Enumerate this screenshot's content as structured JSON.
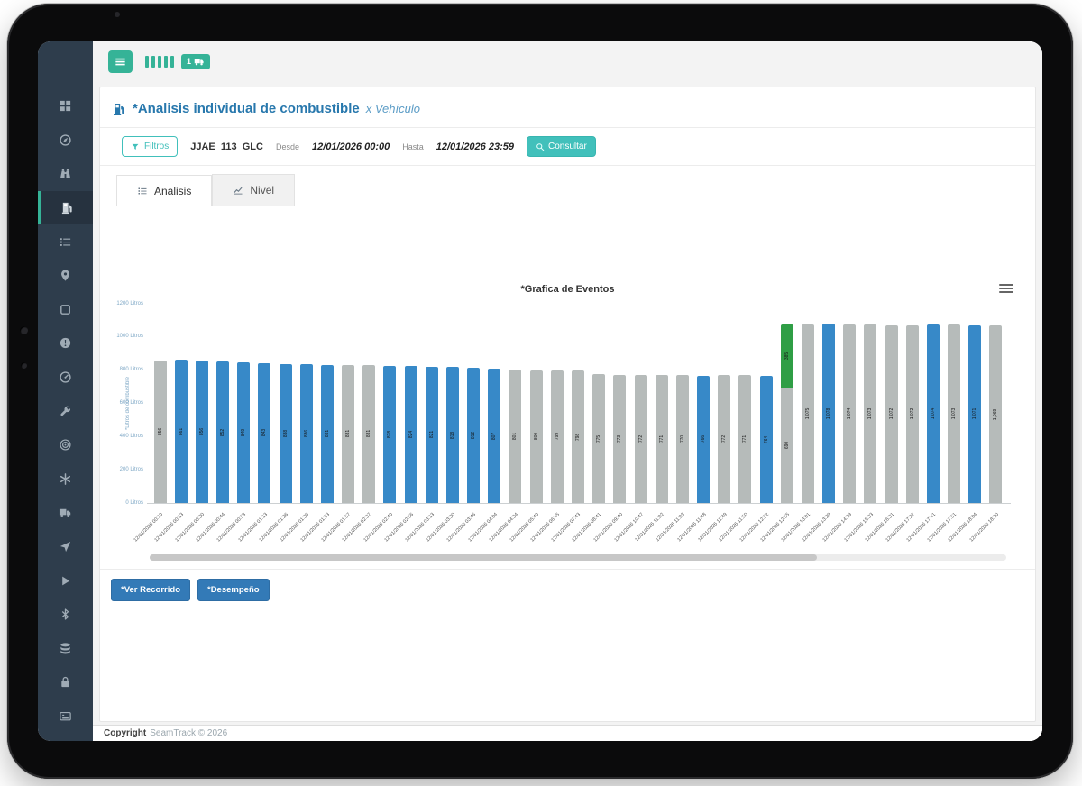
{
  "topbar": {
    "badge_count": "1"
  },
  "header": {
    "title": "*Analisis individual de combustible",
    "subtitle": "x Vehículo"
  },
  "filterbar": {
    "filtros": "Filtros",
    "vehicle": "JJAE_113_GLC",
    "desde_label": "Desde",
    "desde_value": "12/01/2026 00:00",
    "hasta_label": "Hasta",
    "hasta_value": "12/01/2026 23:59",
    "consultar": "Consultar"
  },
  "tabs": [
    {
      "label": "Analisis",
      "active": true
    },
    {
      "label": "Nivel",
      "active": false
    }
  ],
  "sidebar": {
    "active": "fuel-pump",
    "items": [
      {
        "name": "grid"
      },
      {
        "name": "compass"
      },
      {
        "name": "binoculars"
      },
      {
        "name": "fuel-pump"
      },
      {
        "name": "list"
      },
      {
        "name": "map-pin"
      },
      {
        "name": "square"
      },
      {
        "name": "alert"
      },
      {
        "name": "gauge"
      },
      {
        "name": "wrench"
      },
      {
        "name": "target"
      },
      {
        "name": "asterisk"
      },
      {
        "name": "truck"
      },
      {
        "name": "nav-arrow"
      },
      {
        "name": "play"
      },
      {
        "name": "bluetooth"
      },
      {
        "name": "database"
      },
      {
        "name": "lock"
      },
      {
        "name": "card"
      }
    ]
  },
  "chart_data": {
    "type": "bar",
    "title": "*Grafica de Eventos",
    "xlabel": "",
    "ylabel": "*Litros de combustible",
    "ylim": [
      0,
      1200
    ],
    "yticks": [
      0,
      200,
      400,
      600,
      800,
      1000,
      1200
    ],
    "ytick_unit": "Litros",
    "grid": false,
    "legend": "none",
    "bar_colors": {
      "normal": "#3789c8",
      "idle": "#b6bbba",
      "load": "#2f9e45"
    },
    "bars": [
      {
        "time": "12/01/2026 00:10",
        "value": 856,
        "color": "idle",
        "load": 0
      },
      {
        "time": "12/01/2026 00:13",
        "value": 861,
        "color": "normal",
        "load": 0
      },
      {
        "time": "12/01/2026 00:30",
        "value": 856,
        "color": "normal",
        "load": 0
      },
      {
        "time": "12/01/2026 00:44",
        "value": 852,
        "color": "normal",
        "load": 0
      },
      {
        "time": "12/01/2026 00:58",
        "value": 849,
        "color": "normal",
        "load": 0
      },
      {
        "time": "12/01/2026 01:13",
        "value": 843,
        "color": "normal",
        "load": 0
      },
      {
        "time": "12/01/2026 01:26",
        "value": 838,
        "color": "normal",
        "load": 0
      },
      {
        "time": "12/01/2026 01:39",
        "value": 836,
        "color": "normal",
        "load": 0
      },
      {
        "time": "12/01/2026 01:53",
        "value": 831,
        "color": "normal",
        "load": 0
      },
      {
        "time": "12/01/2026 01:57",
        "value": 831,
        "color": "idle",
        "load": 0
      },
      {
        "time": "12/01/2026 02:37",
        "value": 831,
        "color": "idle",
        "load": 0
      },
      {
        "time": "12/01/2026 02:40",
        "value": 828,
        "color": "normal",
        "load": 0
      },
      {
        "time": "12/01/2026 02:56",
        "value": 824,
        "color": "normal",
        "load": 0
      },
      {
        "time": "12/01/2026 03:13",
        "value": 821,
        "color": "normal",
        "load": 0
      },
      {
        "time": "12/01/2026 03:30",
        "value": 818,
        "color": "normal",
        "load": 0
      },
      {
        "time": "12/01/2026 03:46",
        "value": 812,
        "color": "normal",
        "load": 0
      },
      {
        "time": "12/01/2026 04:04",
        "value": 807,
        "color": "normal",
        "load": 0
      },
      {
        "time": "12/01/2026 04:34",
        "value": 801,
        "color": "idle",
        "load": 0
      },
      {
        "time": "12/01/2026 05:40",
        "value": 800,
        "color": "idle",
        "load": 0
      },
      {
        "time": "12/01/2026 06:45",
        "value": 799,
        "color": "idle",
        "load": 0
      },
      {
        "time": "12/01/2026 07:43",
        "value": 798,
        "color": "idle",
        "load": 0
      },
      {
        "time": "12/01/2026 08:41",
        "value": 775,
        "color": "idle",
        "load": 0
      },
      {
        "time": "12/01/2026 09:40",
        "value": 773,
        "color": "idle",
        "load": 0
      },
      {
        "time": "12/01/2026 10:47",
        "value": 772,
        "color": "idle",
        "load": 0
      },
      {
        "time": "12/01/2026 11:02",
        "value": 771,
        "color": "idle",
        "load": 0
      },
      {
        "time": "12/01/2026 11:03",
        "value": 770,
        "color": "idle",
        "load": 0
      },
      {
        "time": "12/01/2026 11:48",
        "value": 766,
        "color": "normal",
        "load": 0
      },
      {
        "time": "12/01/2026 11:49",
        "value": 772,
        "color": "idle",
        "load": 0
      },
      {
        "time": "12/01/2026 11:50",
        "value": 771,
        "color": "idle",
        "load": 0
      },
      {
        "time": "12/01/2026 12:52",
        "value": 764,
        "color": "normal",
        "load": 0
      },
      {
        "time": "12/01/2026 12:55",
        "value": 690,
        "color": "idle",
        "load": 385
      },
      {
        "time": "12/01/2026 13:01",
        "value": 1075,
        "color": "idle",
        "load": 0
      },
      {
        "time": "12/01/2026 13:29",
        "value": 1078,
        "color": "normal",
        "load": 0
      },
      {
        "time": "12/01/2026 14:29",
        "value": 1074,
        "color": "idle",
        "load": 0
      },
      {
        "time": "12/01/2026 15:33",
        "value": 1073,
        "color": "idle",
        "load": 0
      },
      {
        "time": "12/01/2026 16:31",
        "value": 1072,
        "color": "idle",
        "load": 0
      },
      {
        "time": "12/01/2026 17:27",
        "value": 1072,
        "color": "idle",
        "load": 0
      },
      {
        "time": "12/01/2026 17:41",
        "value": 1074,
        "color": "normal",
        "load": 0
      },
      {
        "time": "12/01/2026 17:51",
        "value": 1073,
        "color": "idle",
        "load": 0
      },
      {
        "time": "12/01/2026 18:04",
        "value": 1071,
        "color": "normal",
        "load": 0
      },
      {
        "time": "12/01/2026 18:20",
        "value": 1069,
        "color": "idle",
        "load": 0
      }
    ]
  },
  "actions": {
    "ver_recorrido": "*Ver Recorrido",
    "desempeno": "*Desempeño"
  },
  "footer": {
    "bold": "Copyright",
    "rest": "SeamTrack © 2026"
  }
}
